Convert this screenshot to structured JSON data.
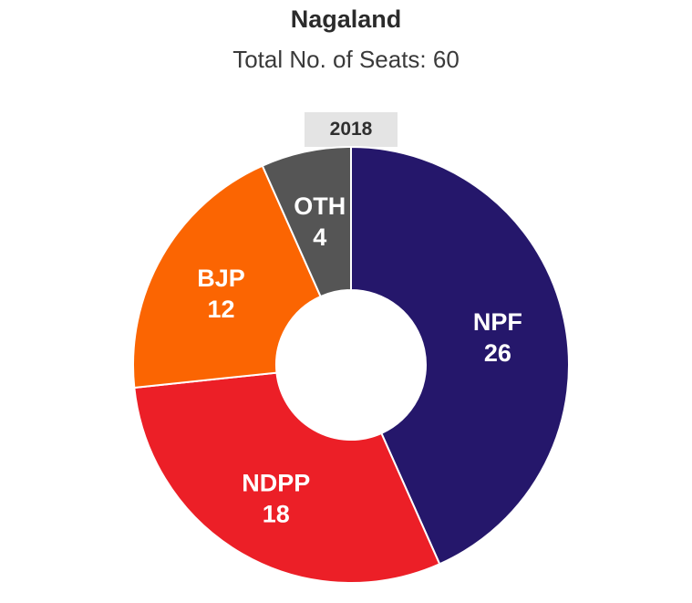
{
  "chart_data": {
    "type": "pie",
    "title": "Nagaland",
    "subtitle": "Total No. of Seats: 60",
    "year": "2018",
    "categories": [
      "NPF",
      "NDPP",
      "BJP",
      "OTH"
    ],
    "values": [
      26,
      18,
      12,
      4
    ],
    "labels": [
      "26",
      "18",
      "12",
      "4"
    ],
    "colors": [
      "#25176b",
      "#ec1f27",
      "#fb6502",
      "#555555"
    ]
  }
}
